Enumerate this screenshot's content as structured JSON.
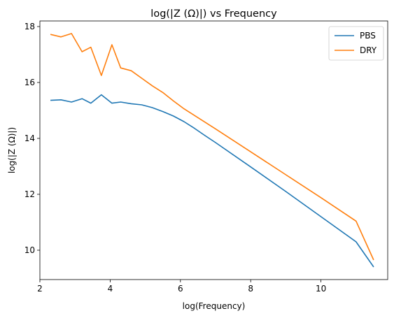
{
  "chart_data": {
    "type": "line",
    "title": "log(|Z (Ω)|) vs Frequency",
    "xlabel": "log(Frequency)",
    "ylabel": "log(|Z (Ω)|)",
    "xlim": [
      2.0,
      11.9
    ],
    "ylim": [
      8.95,
      18.2
    ],
    "xticks": [
      2,
      4,
      6,
      8,
      10
    ],
    "yticks": [
      10,
      12,
      14,
      16,
      18
    ],
    "grid": false,
    "legend_position": "top-right",
    "series": [
      {
        "name": "PBS",
        "color": "#1f77b4",
        "x": [
          2.3,
          2.6,
          2.9,
          3.2,
          3.45,
          3.75,
          4.05,
          4.3,
          4.6,
          4.9,
          5.2,
          5.5,
          5.8,
          6.1,
          6.4,
          6.7,
          7.0,
          8.0,
          9.0,
          10.0,
          11.0,
          11.5
        ],
        "y": [
          15.36,
          15.38,
          15.3,
          15.42,
          15.26,
          15.56,
          15.26,
          15.3,
          15.24,
          15.2,
          15.1,
          14.96,
          14.8,
          14.6,
          14.36,
          14.1,
          13.85,
          12.98,
          12.1,
          11.2,
          10.3,
          9.4
        ]
      },
      {
        "name": "DRY",
        "color": "#ff7f0e",
        "x": [
          2.3,
          2.6,
          2.9,
          3.2,
          3.45,
          3.75,
          4.05,
          4.3,
          4.6,
          4.9,
          5.2,
          5.5,
          5.8,
          6.1,
          6.4,
          6.7,
          7.0,
          8.0,
          9.0,
          10.0,
          11.0,
          11.5
        ],
        "y": [
          17.72,
          17.63,
          17.75,
          17.1,
          17.26,
          16.25,
          17.35,
          16.52,
          16.42,
          16.15,
          15.88,
          15.64,
          15.34,
          15.06,
          14.82,
          14.58,
          14.34,
          13.52,
          12.7,
          11.88,
          11.04,
          9.65
        ]
      }
    ]
  }
}
